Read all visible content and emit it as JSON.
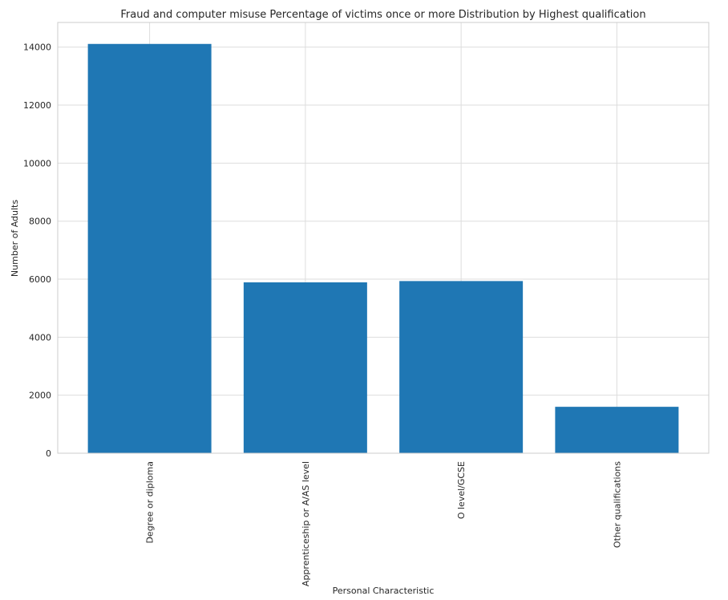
{
  "chart_data": {
    "type": "bar",
    "title": "Fraud and computer misuse Percentage of victims once or more Distribution by Highest qualification",
    "xlabel": "Personal Characteristic",
    "ylabel": "Number of Adults",
    "categories": [
      "Degree or diploma",
      "Apprenticeship or A/AS level",
      "O level/GCSE",
      "Other qualifications"
    ],
    "values": [
      14110,
      5890,
      5935,
      1600
    ],
    "ylim": [
      0,
      14850
    ],
    "yticks": [
      0,
      2000,
      4000,
      6000,
      8000,
      10000,
      12000,
      14000
    ],
    "grid": true,
    "bar_color": "#1f77b4"
  }
}
